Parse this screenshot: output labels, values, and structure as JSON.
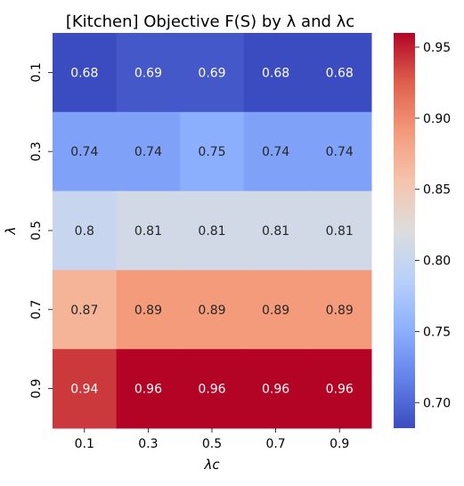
{
  "chart_data": {
    "type": "heatmap",
    "title": "[Kitchen] Objective F(S) by λ and λᴄ",
    "xlabel": "λᴄ",
    "ylabel": "λ",
    "x_categories": [
      "0.1",
      "0.3",
      "0.5",
      "0.7",
      "0.9"
    ],
    "y_categories": [
      "0.1",
      "0.3",
      "0.5",
      "0.7",
      "0.9"
    ],
    "values": [
      [
        0.68,
        0.69,
        0.69,
        0.68,
        0.68
      ],
      [
        0.74,
        0.74,
        0.75,
        0.74,
        0.74
      ],
      [
        0.8,
        0.81,
        0.81,
        0.81,
        0.81
      ],
      [
        0.87,
        0.89,
        0.89,
        0.89,
        0.89
      ],
      [
        0.94,
        0.96,
        0.96,
        0.96,
        0.96
      ]
    ],
    "cell_labels": [
      [
        "0.68",
        "0.69",
        "0.69",
        "0.68",
        "0.68"
      ],
      [
        "0.74",
        "0.74",
        "0.75",
        "0.74",
        "0.74"
      ],
      [
        "0.8",
        "0.81",
        "0.81",
        "0.81",
        "0.81"
      ],
      [
        "0.87",
        "0.89",
        "0.89",
        "0.89",
        "0.89"
      ],
      [
        "0.94",
        "0.96",
        "0.96",
        "0.96",
        "0.96"
      ]
    ],
    "colormap": "coolwarm",
    "vmin": 0.682,
    "vmax": 0.96,
    "colorbar": {
      "ticks": [
        0.7,
        0.75,
        0.8,
        0.85,
        0.9,
        0.95
      ],
      "tick_labels": [
        "0.70",
        "0.75",
        "0.80",
        "0.85",
        "0.90",
        "0.95"
      ],
      "placement": "right"
    },
    "grid": false
  }
}
